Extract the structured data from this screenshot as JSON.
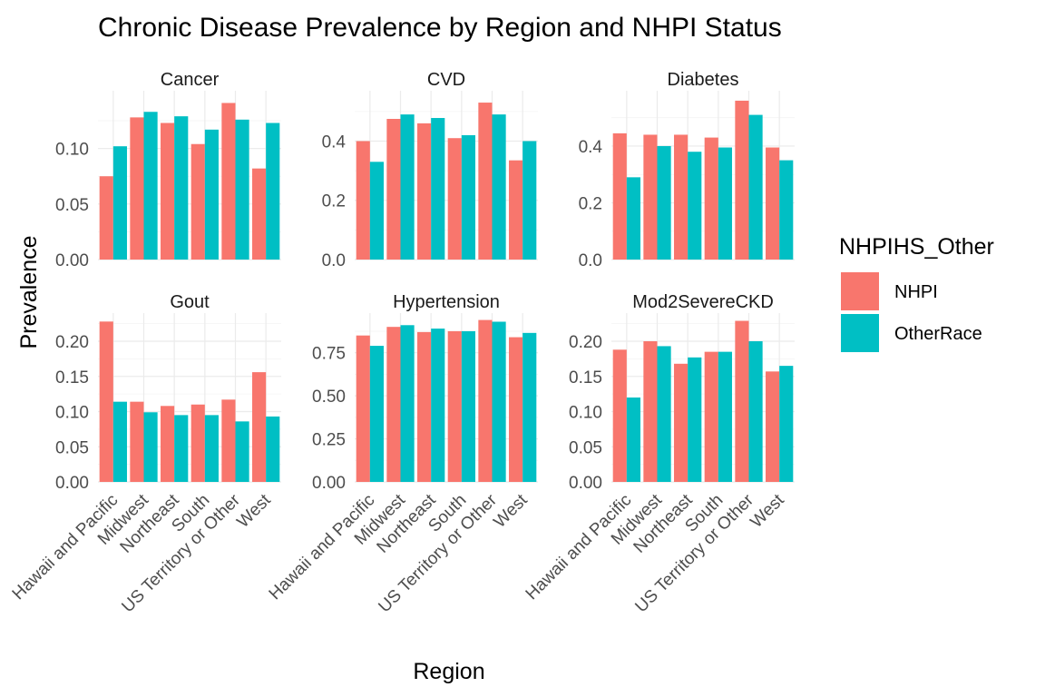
{
  "chart_data": {
    "type": "bar",
    "title": "Chronic Disease Prevalence by Region and NHPI Status",
    "xlabel": "Region",
    "ylabel": "Prevalence",
    "legend": {
      "title": "NHPIHS_Other",
      "placement": "right",
      "entries": [
        {
          "name": "NHPI",
          "color": "#F8766D"
        },
        {
          "name": "OtherRace",
          "color": "#00BFC4"
        }
      ]
    },
    "categories": [
      "Hawaii and Pacific",
      "Midwest",
      "Northeast",
      "South",
      "US Territory or Other",
      "West"
    ],
    "grid": true,
    "panels": [
      {
        "name": "Cancer",
        "ylim": [
          0,
          0.152
        ],
        "yticks": [
          0,
          0.05,
          0.1
        ],
        "ytick_labels": [
          "0.00",
          "0.05",
          "0.10"
        ],
        "series": [
          {
            "name": "NHPI",
            "values": [
              0.075,
              0.128,
              0.123,
              0.104,
              0.141,
              0.082
            ]
          },
          {
            "name": "OtherRace",
            "values": [
              0.102,
              0.133,
              0.129,
              0.117,
              0.126,
              0.123
            ]
          }
        ]
      },
      {
        "name": "CVD",
        "ylim": [
          0,
          0.57
        ],
        "yticks": [
          0,
          0.2,
          0.4
        ],
        "ytick_labels": [
          "0.0",
          "0.2",
          "0.4"
        ],
        "series": [
          {
            "name": "NHPI",
            "values": [
              0.4,
              0.475,
              0.46,
              0.41,
              0.53,
              0.335
            ]
          },
          {
            "name": "OtherRace",
            "values": [
              0.33,
              0.49,
              0.478,
              0.42,
              0.49,
              0.4
            ]
          }
        ]
      },
      {
        "name": "Diabetes",
        "ylim": [
          0,
          0.595
        ],
        "yticks": [
          0,
          0.2,
          0.4
        ],
        "ytick_labels": [
          "0.0",
          "0.2",
          "0.4"
        ],
        "series": [
          {
            "name": "NHPI",
            "values": [
              0.445,
              0.44,
              0.44,
              0.43,
              0.56,
              0.395
            ]
          },
          {
            "name": "OtherRace",
            "values": [
              0.29,
              0.4,
              0.38,
              0.395,
              0.51,
              0.35
            ]
          }
        ]
      },
      {
        "name": "Gout",
        "ylim": [
          0,
          0.24
        ],
        "yticks": [
          0,
          0.05,
          0.1,
          0.15,
          0.2
        ],
        "ytick_labels": [
          "0.00",
          "0.05",
          "0.10",
          "0.15",
          "0.20"
        ],
        "series": [
          {
            "name": "NHPI",
            "values": [
              0.228,
              0.114,
              0.108,
              0.11,
              0.117,
              0.156
            ]
          },
          {
            "name": "OtherRace",
            "values": [
              0.114,
              0.099,
              0.095,
              0.095,
              0.086,
              0.093
            ]
          }
        ]
      },
      {
        "name": "Hypertension",
        "ylim": [
          0,
          0.98
        ],
        "yticks": [
          0,
          0.25,
          0.5,
          0.75
        ],
        "ytick_labels": [
          "0.00",
          "0.25",
          "0.50",
          "0.75"
        ],
        "series": [
          {
            "name": "NHPI",
            "values": [
              0.85,
              0.9,
              0.87,
              0.875,
              0.94,
              0.84
            ]
          },
          {
            "name": "OtherRace",
            "values": [
              0.79,
              0.91,
              0.89,
              0.875,
              0.93,
              0.865
            ]
          }
        ]
      },
      {
        "name": "Mod2SevereCKD",
        "ylim": [
          0,
          0.24
        ],
        "yticks": [
          0,
          0.05,
          0.1,
          0.15,
          0.2
        ],
        "ytick_labels": [
          "0.00",
          "0.05",
          "0.10",
          "0.15",
          "0.20"
        ],
        "series": [
          {
            "name": "NHPI",
            "values": [
              0.188,
              0.2,
              0.168,
              0.185,
              0.229,
              0.157
            ]
          },
          {
            "name": "OtherRace",
            "values": [
              0.12,
              0.193,
              0.177,
              0.185,
              0.2,
              0.165
            ]
          }
        ]
      }
    ]
  }
}
